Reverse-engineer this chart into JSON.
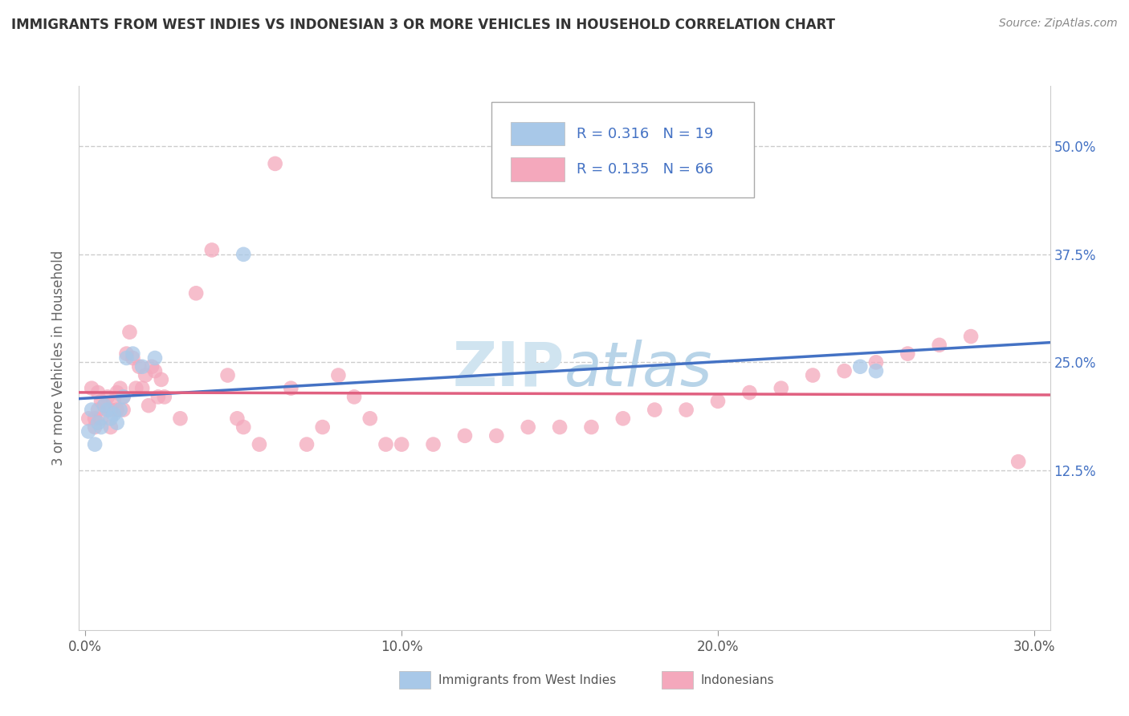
{
  "title": "IMMIGRANTS FROM WEST INDIES VS INDONESIAN 3 OR MORE VEHICLES IN HOUSEHOLD CORRELATION CHART",
  "source": "Source: ZipAtlas.com",
  "ylabel_label": "3 or more Vehicles in Household",
  "xlim": [
    -0.002,
    0.305
  ],
  "ylim": [
    -0.06,
    0.57
  ],
  "ytick_labels": [
    "12.5%",
    "25.0%",
    "37.5%",
    "50.0%"
  ],
  "ytick_values": [
    0.125,
    0.25,
    0.375,
    0.5
  ],
  "xtick_values": [
    0.0,
    0.1,
    0.2,
    0.3
  ],
  "xtick_labels": [
    "0.0%",
    "10.0%",
    "20.0%",
    "30.0%"
  ],
  "west_indies_color": "#a8c8e8",
  "indonesian_color": "#f4a8bc",
  "west_indies_line_color": "#4472c4",
  "indonesian_line_color": "#e06080",
  "watermark_color": "#d0e4f0",
  "legend_text_color": "#4472c4",
  "west_indies_R": 0.316,
  "west_indies_N": 19,
  "indonesian_R": 0.135,
  "indonesian_N": 66,
  "wi_x": [
    0.001,
    0.002,
    0.003,
    0.004,
    0.005,
    0.006,
    0.007,
    0.008,
    0.009,
    0.01,
    0.011,
    0.012,
    0.013,
    0.015,
    0.018,
    0.022,
    0.05,
    0.245,
    0.25
  ],
  "wi_y": [
    0.17,
    0.195,
    0.155,
    0.18,
    0.175,
    0.2,
    0.195,
    0.185,
    0.19,
    0.18,
    0.195,
    0.21,
    0.255,
    0.26,
    0.245,
    0.255,
    0.375,
    0.245,
    0.24
  ],
  "indo_x": [
    0.001,
    0.002,
    0.003,
    0.003,
    0.004,
    0.004,
    0.005,
    0.005,
    0.006,
    0.007,
    0.008,
    0.008,
    0.009,
    0.01,
    0.01,
    0.011,
    0.012,
    0.012,
    0.013,
    0.014,
    0.015,
    0.016,
    0.017,
    0.018,
    0.019,
    0.02,
    0.021,
    0.022,
    0.023,
    0.024,
    0.025,
    0.03,
    0.035,
    0.04,
    0.045,
    0.048,
    0.05,
    0.055,
    0.06,
    0.065,
    0.07,
    0.075,
    0.08,
    0.085,
    0.09,
    0.095,
    0.1,
    0.11,
    0.12,
    0.13,
    0.14,
    0.15,
    0.16,
    0.17,
    0.18,
    0.19,
    0.2,
    0.21,
    0.22,
    0.23,
    0.24,
    0.25,
    0.26,
    0.27,
    0.28,
    0.295
  ],
  "indo_y": [
    0.185,
    0.22,
    0.185,
    0.175,
    0.195,
    0.215,
    0.205,
    0.185,
    0.2,
    0.21,
    0.195,
    0.175,
    0.205,
    0.195,
    0.215,
    0.22,
    0.195,
    0.21,
    0.26,
    0.285,
    0.255,
    0.22,
    0.245,
    0.22,
    0.235,
    0.2,
    0.245,
    0.24,
    0.21,
    0.23,
    0.21,
    0.185,
    0.33,
    0.38,
    0.235,
    0.185,
    0.175,
    0.155,
    0.48,
    0.22,
    0.155,
    0.175,
    0.235,
    0.21,
    0.185,
    0.155,
    0.155,
    0.155,
    0.165,
    0.165,
    0.175,
    0.175,
    0.175,
    0.185,
    0.195,
    0.195,
    0.205,
    0.215,
    0.22,
    0.235,
    0.24,
    0.25,
    0.26,
    0.27,
    0.28,
    0.135
  ]
}
